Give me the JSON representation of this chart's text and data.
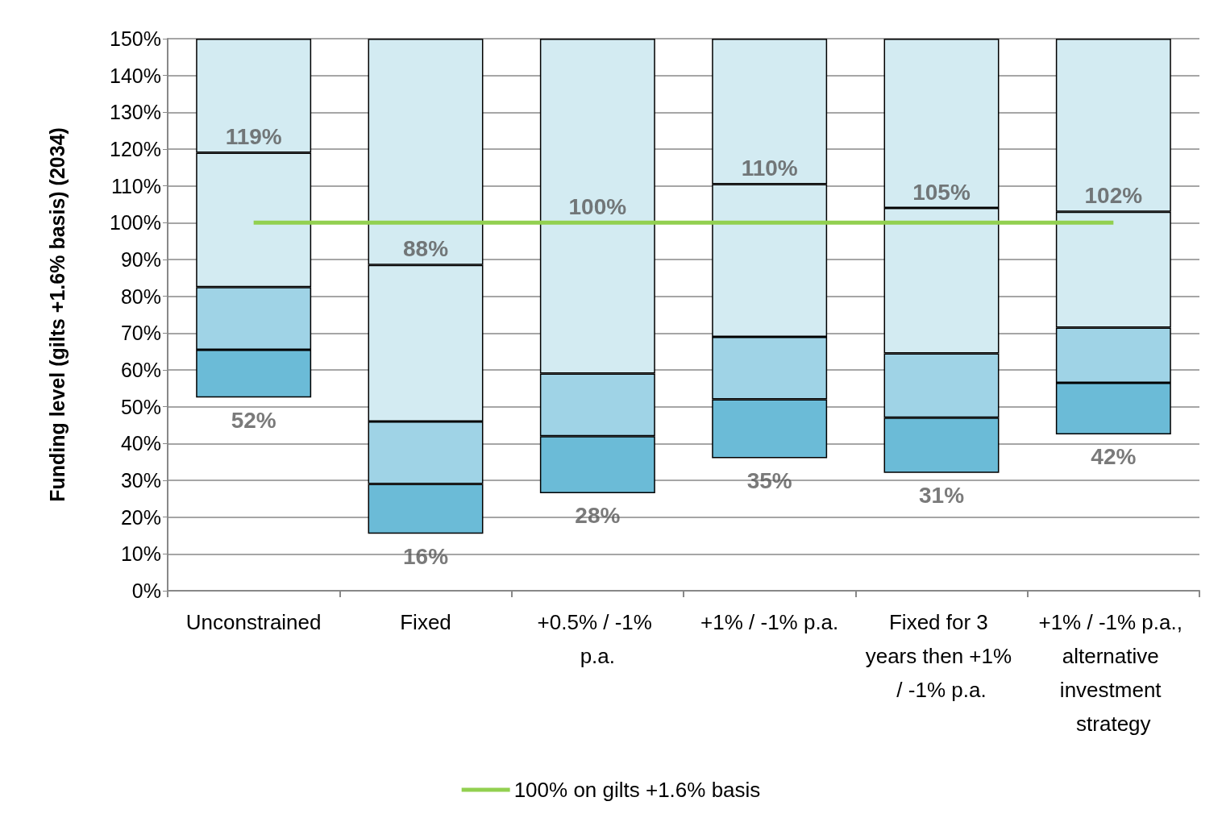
{
  "chart_data": {
    "type": "bar",
    "ylabel": "Funding level (gilts +1.6% basis) (2034)",
    "categories": [
      "Unconstrained",
      "Fixed",
      "+0.5% / -1% p.a.",
      "+1% / -1% p.a.",
      "Fixed for 3 years then +1% / -1% p.a.",
      "+1% / -1% p.a., alternative investment strategy"
    ],
    "series": [
      {
        "color": "#6bbbd7",
        "base": [
          52.5,
          15.5,
          26.5,
          36,
          32,
          42.5
        ],
        "values": [
          13,
          13.5,
          15.5,
          16,
          15,
          14
        ]
      },
      {
        "color": "#9fd3e6",
        "base": [
          65.5,
          29,
          42,
          52,
          47,
          56.5
        ],
        "values": [
          17,
          17,
          17,
          17,
          17.5,
          15
        ]
      },
      {
        "color": "#d3ebf2",
        "base": [
          82.5,
          46,
          59,
          69,
          64.5,
          71.5
        ],
        "values": [
          36.5,
          42.5,
          41,
          41.5,
          39.5,
          31.5
        ]
      },
      {
        "color": "#d3ebf2",
        "base": [
          119,
          88.5,
          100,
          110.5,
          104,
          103
        ],
        "values": [
          31,
          61.5,
          50,
          39.5,
          46,
          47
        ]
      },
      {
        "type": "line",
        "name": "100% on gilts +1.6% basis",
        "color": "#92d050",
        "values": [
          100,
          100,
          100,
          100,
          100,
          100
        ]
      }
    ],
    "ylim": [
      0,
      150
    ],
    "yticks": [
      {
        "value": 0,
        "label": "0%"
      },
      {
        "value": 10,
        "label": "10%"
      },
      {
        "value": 20,
        "label": "20%"
      },
      {
        "value": 30,
        "label": "30%"
      },
      {
        "value": 40,
        "label": "40%"
      },
      {
        "value": 50,
        "label": "50%"
      },
      {
        "value": 60,
        "label": "60%"
      },
      {
        "value": 70,
        "label": "70%"
      },
      {
        "value": 80,
        "label": "80%"
      },
      {
        "value": 90,
        "label": "90%"
      },
      {
        "value": 100,
        "label": "100%"
      },
      {
        "value": 110,
        "label": "110%"
      },
      {
        "value": 120,
        "label": "120%"
      },
      {
        "value": 130,
        "label": "130%"
      },
      {
        "value": 140,
        "label": "140%"
      },
      {
        "value": 150,
        "label": "150%"
      }
    ],
    "annotations": [
      "52%",
      "119%",
      "16%",
      "88%",
      "28%",
      "100%",
      "35%",
      "110%",
      "31%",
      "105%",
      "42%",
      "102%"
    ],
    "grid": "y",
    "legend": "bottom"
  }
}
